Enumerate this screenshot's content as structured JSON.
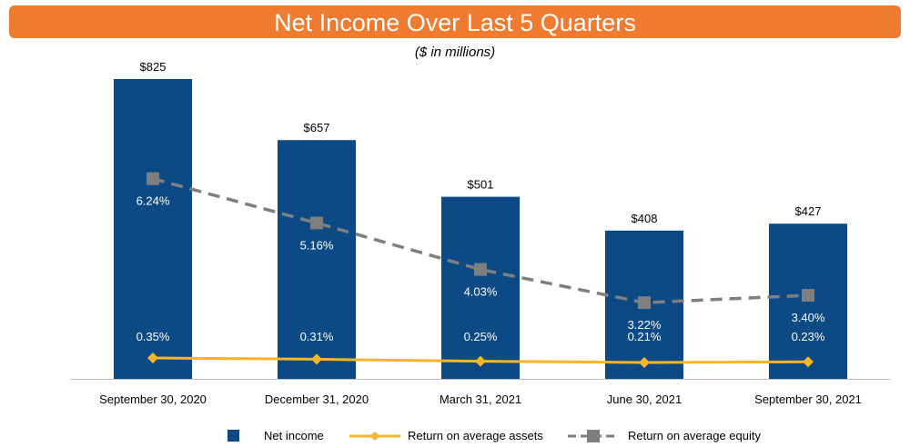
{
  "header": {
    "title": "Net Income Over Last 5 Quarters",
    "subtitle": "($ in millions)"
  },
  "colors": {
    "banner": "#EE7B30",
    "bar": "#0B4A84",
    "assets_line": "#F7B52C",
    "equity_line": "#7F7F7F"
  },
  "legend": {
    "net_income": "Net income",
    "assets": "Return on average assets",
    "equity": "Return on average equity"
  },
  "chart_data": {
    "type": "bar",
    "categories": [
      "September 30, 2020",
      "December 31, 2020",
      "March 31, 2021",
      "June 30, 2021",
      "September 30, 2021"
    ],
    "series": [
      {
        "name": "Net income",
        "type": "bar",
        "values": [
          825,
          657,
          501,
          408,
          427
        ],
        "labels": [
          "$825",
          "$657",
          "$501",
          "$408",
          "$427"
        ]
      },
      {
        "name": "Return on average assets",
        "type": "line",
        "values": [
          0.35,
          0.31,
          0.25,
          0.21,
          0.23
        ],
        "labels": [
          "0.35%",
          "0.31%",
          "0.25%",
          "0.21%",
          "0.23%"
        ]
      },
      {
        "name": "Return on average equity",
        "type": "line",
        "style": "dashed",
        "values": [
          6.24,
          5.16,
          4.03,
          3.22,
          3.4
        ],
        "labels": [
          "6.24%",
          "5.16%",
          "4.03%",
          "3.22%",
          "3.40%"
        ]
      }
    ],
    "title": "Net Income Over Last 5 Quarters",
    "subtitle": "($ in millions)",
    "xlabel": "",
    "ylabel": "",
    "ylim": [
      0,
      850
    ],
    "grid": false,
    "legend_position": "bottom"
  }
}
